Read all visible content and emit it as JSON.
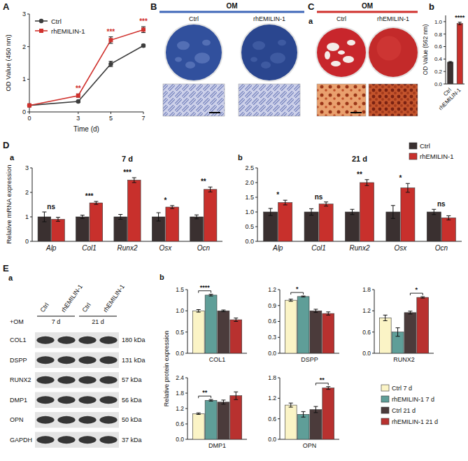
{
  "chart_data": [
    {
      "type": "line",
      "panel_label": "A",
      "x": [
        0,
        3,
        5,
        7
      ],
      "xlim": [
        0,
        7
      ],
      "xticks": [
        0,
        3,
        5,
        7
      ],
      "ylim": [
        0,
        3
      ],
      "yticks": [
        0,
        1,
        2,
        3
      ],
      "x_label": "Time (d)",
      "y_label": "OD Value (450 nm)",
      "legend": "top-left",
      "series": [
        {
          "name": "Ctrl",
          "color": "#3d3d3d",
          "marker": "circle",
          "values": [
            0.2,
            0.32,
            1.47,
            2.03
          ],
          "errors": [
            0.02,
            0.03,
            0.08,
            0.04
          ]
        },
        {
          "name": "rhEMILIN-1",
          "color": "#d0312d",
          "marker": "square",
          "values": [
            0.2,
            0.5,
            2.2,
            2.52
          ],
          "errors": [
            0.02,
            0.05,
            0.1,
            0.09
          ]
        }
      ],
      "annotations": [
        {
          "x": 3,
          "label": "**"
        },
        {
          "x": 5,
          "label": "***"
        },
        {
          "x": 7,
          "label": "***"
        }
      ]
    },
    {
      "type": "bar",
      "panel_label": "b",
      "categories": [
        "Ctrl",
        "rhEMILIN-1"
      ],
      "values": [
        0.35,
        0.97
      ],
      "errors": [
        0.01,
        0.02
      ],
      "colors": [
        "#3a3030",
        "#c8302c"
      ],
      "ylim": [
        0,
        1.1
      ],
      "yticks": [
        {
          "value": 0,
          "label": "0.0"
        },
        0.2,
        0.4,
        0.6,
        0.8,
        {
          "value": 1,
          "label": "1.0"
        }
      ],
      "y_label": "OD Value (562 nm)",
      "annotations": [
        {
          "category": "rhEMILIN-1",
          "label": "****"
        }
      ]
    },
    {
      "type": "bar",
      "panel_label": "D",
      "sub_label": "a",
      "title": "7 d",
      "categories": [
        "Alp",
        "Col1",
        "Runx2",
        "Osx",
        "Ocn"
      ],
      "ylim": [
        0,
        3
      ],
      "yticks": [
        0,
        1,
        2,
        3
      ],
      "y_label": "Relative mRNA expression",
      "series": [
        {
          "color": "#3a3030",
          "values": [
            1,
            1,
            1,
            1,
            1
          ],
          "errors": [
            0.2,
            0.07,
            0.1,
            0.17,
            0.08
          ]
        },
        {
          "color": "#c8302c",
          "values": [
            0.9,
            1.57,
            2.5,
            1.4,
            2.12
          ],
          "errors": [
            0.08,
            0.06,
            0.1,
            0.06,
            0.1
          ]
        }
      ],
      "annotations": [
        {
          "category": "Alp",
          "label": "ns"
        },
        {
          "category": "Col1",
          "label": "***"
        },
        {
          "category": "Runx2",
          "label": "***"
        },
        {
          "category": "Osx",
          "label": "*"
        },
        {
          "category": "Ocn",
          "label": "**"
        }
      ]
    },
    {
      "type": "bar",
      "sub_label": "b",
      "title": "21 d",
      "categories": [
        "Alp",
        "Col1",
        "Runx2",
        "Osx",
        "Ocn"
      ],
      "ylim": [
        0,
        2.5
      ],
      "yticks": [
        {
          "value": 0,
          "label": "0.0"
        },
        0.5,
        {
          "value": 1,
          "label": "1.0"
        },
        1.5,
        {
          "value": 2,
          "label": "2.0"
        },
        2.5
      ],
      "legend": "top-right",
      "series": [
        {
          "name": "Ctrl",
          "color": "#3a3030",
          "values": [
            1,
            1,
            1,
            1,
            1
          ],
          "errors": [
            0.12,
            0.11,
            0.09,
            0.22,
            0.09
          ]
        },
        {
          "name": "rhEMILIN-1",
          "color": "#c8302c",
          "values": [
            1.32,
            1.27,
            2.0,
            1.82,
            0.8
          ],
          "errors": [
            0.08,
            0.07,
            0.1,
            0.15,
            0.07
          ]
        }
      ],
      "annotations": [
        {
          "category": "Alp",
          "label": "*"
        },
        {
          "category": "Col1",
          "label": "ns"
        },
        {
          "category": "Runx2",
          "label": "**"
        },
        {
          "category": "Osx",
          "label": "*"
        },
        {
          "category": "Ocn",
          "label": "ns"
        }
      ]
    },
    {
      "type": "bar",
      "sub_label": "b",
      "categories": [
        null
      ],
      "x_label": "COL1",
      "y_label": "Relative protein expression",
      "legend": "bottom-right",
      "ylim": [
        0,
        1.5
      ],
      "yticks": [
        {
          "value": 0,
          "label": "0.0"
        },
        0.5,
        {
          "value": 1,
          "label": "1.0"
        },
        1.5
      ],
      "series": [
        {
          "name": "Ctrl 7 d",
          "color": "#fbf4c6",
          "values": [
            1.0
          ],
          "errors": [
            0.03
          ]
        },
        {
          "name": "rhEMILIN-1 7 d",
          "color": "#5f9e98",
          "values": [
            1.37
          ],
          "errors": [
            0.02
          ]
        },
        {
          "name": "Ctrl 21 d",
          "color": "#4b3b3b",
          "values": [
            1.0
          ],
          "errors": [
            0.02
          ]
        },
        {
          "name": "rhEMILIN-1 21 d",
          "color": "#b8312f",
          "values": [
            0.79
          ],
          "errors": [
            0.04
          ]
        }
      ],
      "comparisons": [
        {
          "series": [
            0,
            1
          ],
          "label": "****"
        }
      ]
    },
    {
      "type": "bar",
      "categories": [
        null
      ],
      "x_label": "DSPP",
      "ylim": [
        0,
        1.2
      ],
      "yticks": [
        {
          "value": 0,
          "label": "0.0"
        },
        0.3,
        0.6,
        0.9,
        1.2
      ],
      "series": [
        {
          "color": "#fbf4c6",
          "values": [
            1.0
          ],
          "errors": [
            0.02
          ]
        },
        {
          "color": "#5f9e98",
          "values": [
            1.07
          ],
          "errors": [
            0.01
          ]
        },
        {
          "color": "#4b3b3b",
          "values": [
            0.8
          ],
          "errors": [
            0.03
          ]
        },
        {
          "color": "#b8312f",
          "values": [
            0.75
          ],
          "errors": [
            0.03
          ]
        }
      ],
      "comparisons": [
        {
          "series": [
            0,
            1
          ],
          "label": "*"
        }
      ]
    },
    {
      "type": "bar",
      "categories": [
        null
      ],
      "x_label": "RUNX2",
      "ylim": [
        0,
        1.8
      ],
      "yticks": [
        {
          "value": 0,
          "label": "0.0"
        },
        0.6,
        1.2,
        1.8
      ],
      "series": [
        {
          "color": "#fbf4c6",
          "values": [
            1.0
          ],
          "errors": [
            0.08
          ]
        },
        {
          "color": "#5f9e98",
          "values": [
            0.6
          ],
          "errors": [
            0.12
          ]
        },
        {
          "color": "#4b3b3b",
          "values": [
            1.15
          ],
          "errors": [
            0.04
          ]
        },
        {
          "color": "#b8312f",
          "values": [
            1.58
          ],
          "errors": [
            0.02
          ]
        }
      ],
      "comparisons": [
        {
          "series": [
            2,
            3
          ],
          "label": "*"
        }
      ]
    },
    {
      "type": "bar",
      "categories": [
        null
      ],
      "x_label": "DMP1",
      "ylim": [
        0,
        2.4
      ],
      "yticks": [
        {
          "value": 0,
          "label": "0.0"
        },
        0.6,
        1.2,
        1.8,
        2.4
      ],
      "series": [
        {
          "color": "#fbf4c6",
          "values": [
            1.0
          ],
          "errors": [
            0.03
          ]
        },
        {
          "color": "#5f9e98",
          "values": [
            1.52
          ],
          "errors": [
            0.03
          ]
        },
        {
          "color": "#4b3b3b",
          "values": [
            1.45
          ],
          "errors": [
            0.08
          ]
        },
        {
          "color": "#b8312f",
          "values": [
            1.7
          ],
          "errors": [
            0.15
          ]
        }
      ],
      "comparisons": [
        {
          "series": [
            0,
            1
          ],
          "label": "**"
        }
      ]
    },
    {
      "type": "bar",
      "categories": [
        null
      ],
      "x_label": "OPN",
      "ylim": [
        0,
        1.8
      ],
      "yticks": [
        {
          "value": 0,
          "label": "0.0"
        },
        0.6,
        1.2,
        1.8
      ],
      "series": [
        {
          "color": "#fbf4c6",
          "values": [
            1.0
          ],
          "errors": [
            0.06
          ]
        },
        {
          "color": "#5f9e98",
          "values": [
            0.73
          ],
          "errors": [
            0.08
          ]
        },
        {
          "color": "#4b3b3b",
          "values": [
            0.87
          ],
          "errors": [
            0.09
          ]
        },
        {
          "color": "#b8312f",
          "values": [
            1.5
          ],
          "errors": [
            0.04
          ]
        }
      ],
      "comparisons": [
        {
          "series": [
            2,
            3
          ],
          "label": "**"
        }
      ]
    }
  ],
  "images": {
    "B": {
      "letter": "B",
      "header": "OM",
      "columns": [
        "Ctrl",
        "rhEMILIN-1"
      ]
    },
    "C": {
      "letter": "C",
      "sub_letter": "a",
      "header": "OM",
      "columns": [
        "Ctrl",
        "rhEMILIN-1"
      ]
    },
    "E": {
      "letter": "E",
      "sub_letter": "a",
      "treatment": "+OM",
      "columns": [
        "Ctrl",
        "rhEMILIN-1",
        "Ctrl",
        "rhEMILIN-1"
      ],
      "groups": [
        "7 d",
        "21 d"
      ],
      "rows": [
        {
          "protein": "COL1",
          "size": "180 kDa"
        },
        {
          "protein": "DSPP",
          "size": "131 kDa"
        },
        {
          "protein": "RUNX2",
          "size": "57 kDa"
        },
        {
          "protein": "DMP1",
          "size": "56 kDa"
        },
        {
          "protein": "OPN",
          "size": "50 kDa"
        },
        {
          "protein": "GAPDH",
          "size": "37 kDa"
        }
      ]
    }
  }
}
